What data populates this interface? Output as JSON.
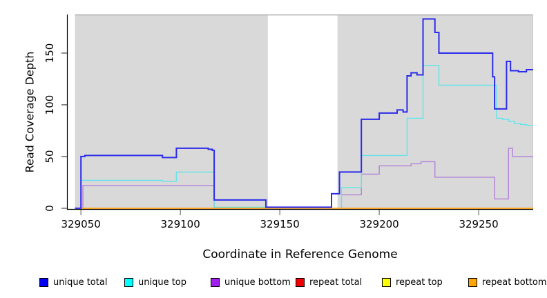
{
  "chart_data": {
    "type": "line",
    "subtype": "step-coverage",
    "title": "",
    "xlabel": "Coordinate in Reference Genome",
    "ylabel": "Read Coverage Depth",
    "xlim": [
      329043,
      329277.4
    ],
    "ylim": [
      -0.7,
      187.3
    ],
    "grid": false,
    "x_ticks": [
      {
        "v": 329050,
        "label": "329050"
      },
      {
        "v": 329100,
        "label": "329100"
      },
      {
        "v": 329150,
        "label": "329150"
      },
      {
        "v": 329200,
        "label": "329200"
      },
      {
        "v": 329250,
        "label": "329250"
      }
    ],
    "y_ticks": [
      {
        "v": 0,
        "label": "0"
      },
      {
        "v": 50,
        "label": "50"
      },
      {
        "v": 100,
        "label": "100"
      },
      {
        "v": 150,
        "label": "150"
      }
    ],
    "plot_bg": {
      "color": "#d9d9d9",
      "x_from": 329047,
      "x_to": 329277.4
    },
    "gap_region": {
      "color": "#ffffff",
      "x_from": 329144,
      "x_to": 329179
    },
    "x_end": 329277.4,
    "series": [
      {
        "name": "repeat total",
        "color": "#e81010",
        "width": 1.4,
        "points": [
          [
            329047,
            0
          ]
        ]
      },
      {
        "name": "repeat top",
        "color": "#ffff00",
        "width": 1.4,
        "points": [
          [
            329047,
            0
          ]
        ]
      },
      {
        "name": "unique bottom",
        "color": "#b281d8",
        "width": 1.4,
        "points": [
          [
            329047,
            0
          ],
          [
            329051,
            22
          ],
          [
            329117,
            0
          ],
          [
            329181,
            13
          ],
          [
            329191,
            33
          ],
          [
            329200,
            41
          ],
          [
            329216,
            43
          ],
          [
            329221,
            45
          ],
          [
            329228,
            30
          ],
          [
            329258,
            9
          ],
          [
            329265,
            58
          ],
          [
            329267,
            50
          ]
        ]
      },
      {
        "name": "unique top",
        "color": "#63e4e9",
        "width": 1.4,
        "points": [
          [
            329047,
            0
          ],
          [
            329050,
            27
          ],
          [
            329091,
            26
          ],
          [
            329098,
            35
          ],
          [
            329117,
            1
          ],
          [
            329144,
            0
          ],
          [
            329181,
            20
          ],
          [
            329191,
            51
          ],
          [
            329214,
            87
          ],
          [
            329222,
            138
          ],
          [
            329230,
            119
          ],
          [
            329259,
            87
          ],
          [
            329262,
            86
          ],
          [
            329265,
            84
          ],
          [
            329268,
            82
          ],
          [
            329271,
            81
          ],
          [
            329274,
            80
          ]
        ]
      },
      {
        "name": "repeat bottom",
        "color": "#ffa019",
        "width": 1.8,
        "points": [
          [
            329047,
            0
          ]
        ]
      },
      {
        "name": "unique total",
        "color": "#2b2beb",
        "width": 2,
        "points": [
          [
            329047,
            0
          ],
          [
            329050,
            50
          ],
          [
            329052,
            51
          ],
          [
            329091,
            49
          ],
          [
            329098,
            58
          ],
          [
            329114,
            57
          ],
          [
            329116,
            56
          ],
          [
            329117,
            8
          ],
          [
            329143,
            1
          ],
          [
            329176,
            14
          ],
          [
            329180,
            35
          ],
          [
            329191,
            86
          ],
          [
            329200,
            92
          ],
          [
            329209,
            95
          ],
          [
            329212,
            93
          ],
          [
            329214,
            128
          ],
          [
            329216,
            131
          ],
          [
            329219,
            129
          ],
          [
            329222,
            183
          ],
          [
            329228,
            170
          ],
          [
            329230,
            150
          ],
          [
            329257,
            127
          ],
          [
            329258,
            96
          ],
          [
            329264,
            142
          ],
          [
            329266,
            133
          ],
          [
            329270,
            132
          ],
          [
            329274,
            134
          ]
        ]
      }
    ]
  },
  "legend": {
    "items": [
      {
        "label": "unique total",
        "color": "#0000f0"
      },
      {
        "label": "unique top",
        "color": "#00ffff"
      },
      {
        "label": "unique bottom",
        "color": "#a020f0"
      },
      {
        "label": "repeat total",
        "color": "#ee0000"
      },
      {
        "label": "repeat top",
        "color": "#ffff00"
      },
      {
        "label": "repeat bottom",
        "color": "#ffa500"
      }
    ]
  }
}
